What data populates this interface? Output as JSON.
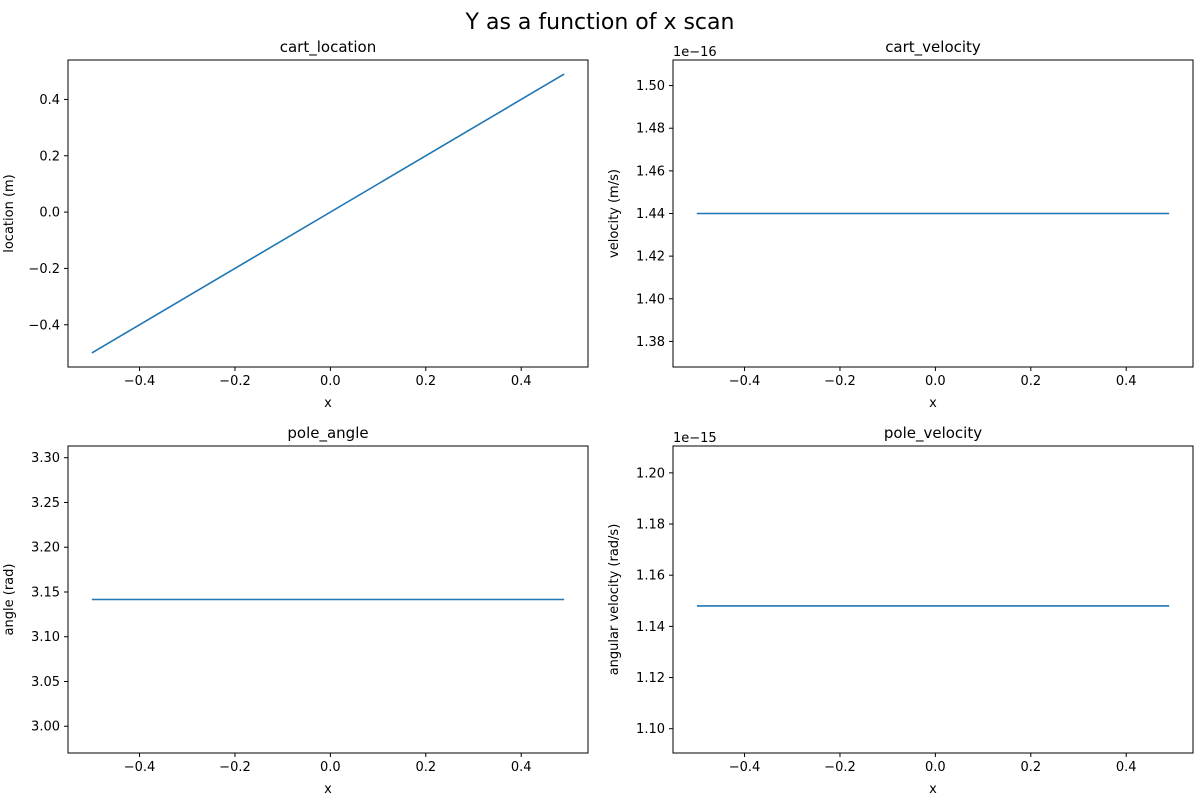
{
  "suptitle": "Y as a function of x scan",
  "colors": {
    "line": "#1f77b4",
    "axes": "#000000",
    "background": "#ffffff"
  },
  "chart_data": [
    {
      "type": "line",
      "title": "cart_location",
      "xlabel": "x",
      "ylabel": "location (m)",
      "offset_text": "",
      "xlim": [
        -0.55,
        0.54
      ],
      "ylim": [
        -0.55,
        0.54
      ],
      "xticks": [
        -0.4,
        -0.2,
        0.0,
        0.2,
        0.4
      ],
      "xtick_labels": [
        "−0.4",
        "−0.2",
        "0.0",
        "0.2",
        "0.4"
      ],
      "yticks": [
        -0.4,
        -0.2,
        0.0,
        0.2,
        0.4
      ],
      "ytick_labels": [
        "−0.4",
        "−0.2",
        "0.0",
        "0.2",
        "0.4"
      ],
      "grid": false,
      "series": [
        {
          "x": [
            -0.5,
            0.49
          ],
          "y": [
            -0.5,
            0.49
          ]
        }
      ]
    },
    {
      "type": "line",
      "title": "cart_velocity",
      "xlabel": "x",
      "ylabel": "velocity (m/s)",
      "offset_text": "1e−16",
      "xlim": [
        -0.55,
        0.54
      ],
      "ylim": [
        1.368,
        1.512
      ],
      "xticks": [
        -0.4,
        -0.2,
        0.0,
        0.2,
        0.4
      ],
      "xtick_labels": [
        "−0.4",
        "−0.2",
        "0.0",
        "0.2",
        "0.4"
      ],
      "yticks": [
        1.38,
        1.4,
        1.42,
        1.44,
        1.46,
        1.48,
        1.5
      ],
      "ytick_labels": [
        "1.38",
        "1.40",
        "1.42",
        "1.44",
        "1.46",
        "1.48",
        "1.50"
      ],
      "grid": false,
      "series": [
        {
          "x": [
            -0.5,
            0.49
          ],
          "y": [
            1.44,
            1.44
          ]
        }
      ]
    },
    {
      "type": "line",
      "title": "pole_angle",
      "xlabel": "x",
      "ylabel": "angle (rad)",
      "offset_text": "",
      "xlim": [
        -0.55,
        0.54
      ],
      "ylim": [
        2.9701,
        3.3131
      ],
      "xticks": [
        -0.4,
        -0.2,
        0.0,
        0.2,
        0.4
      ],
      "xtick_labels": [
        "−0.4",
        "−0.2",
        "0.0",
        "0.2",
        "0.4"
      ],
      "yticks": [
        3.0,
        3.05,
        3.1,
        3.15,
        3.2,
        3.25,
        3.3
      ],
      "ytick_labels": [
        "3.00",
        "3.05",
        "3.10",
        "3.15",
        "3.20",
        "3.25",
        "3.30"
      ],
      "grid": false,
      "series": [
        {
          "x": [
            -0.5,
            0.49
          ],
          "y": [
            3.1416,
            3.1416
          ]
        }
      ]
    },
    {
      "type": "line",
      "title": "pole_velocity",
      "xlabel": "x",
      "ylabel": "angular velocity (rad/s)",
      "offset_text": "1e−15",
      "xlim": [
        -0.55,
        0.54
      ],
      "ylim": [
        1.0905,
        1.2105
      ],
      "xticks": [
        -0.4,
        -0.2,
        0.0,
        0.2,
        0.4
      ],
      "xtick_labels": [
        "−0.4",
        "−0.2",
        "0.0",
        "0.2",
        "0.4"
      ],
      "yticks": [
        1.1,
        1.12,
        1.14,
        1.16,
        1.18,
        1.2
      ],
      "ytick_labels": [
        "1.10",
        "1.12",
        "1.14",
        "1.16",
        "1.18",
        "1.20"
      ],
      "grid": false,
      "series": [
        {
          "x": [
            -0.5,
            0.49
          ],
          "y": [
            1.148,
            1.148
          ]
        }
      ]
    }
  ]
}
